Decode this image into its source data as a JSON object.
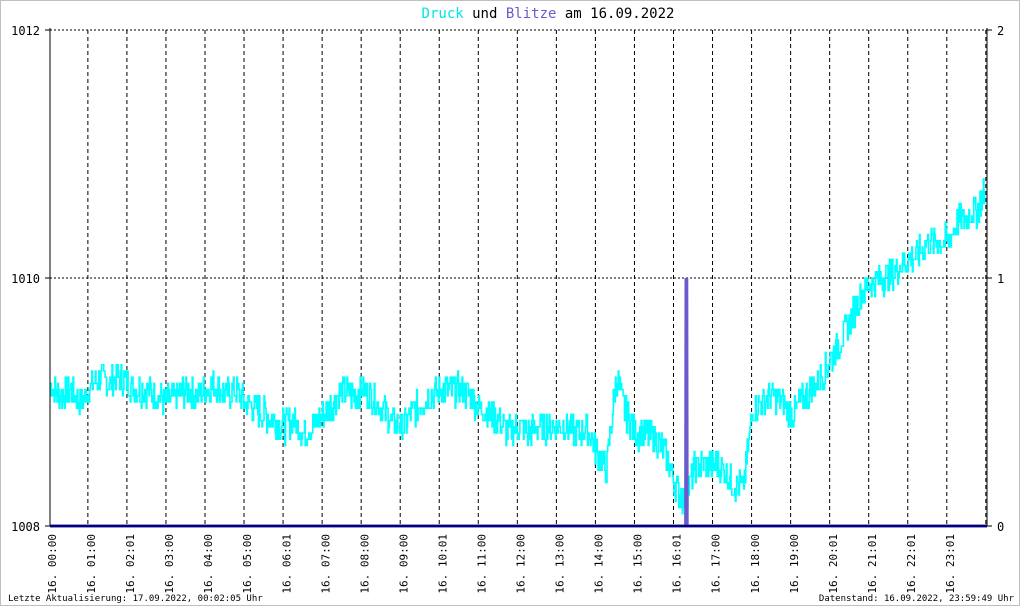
{
  "title": {
    "part1": "Druck",
    "part2": " und ",
    "part3": "Blitze",
    "part4": " am 16.09.2022"
  },
  "footer": {
    "left": "Letzte Aktualisierung: 17.09.2022, 00:02:05 Uhr",
    "right": "Datenstand: 16.09.2022, 23:59:49 Uhr"
  },
  "colors": {
    "druck": "#00ffff",
    "blitze": "#6a5acd",
    "axis": "#000080",
    "frame": "#000000"
  },
  "chart_data": {
    "type": "line",
    "title": "Druck und Blitze am 16.09.2022",
    "x_ticks": [
      "16. 00:00",
      "16. 01:00",
      "16. 02:01",
      "16. 03:00",
      "16. 04:00",
      "16. 05:00",
      "16. 06:01",
      "16. 07:00",
      "16. 08:00",
      "16. 09:00",
      "16. 10:01",
      "16. 11:00",
      "16. 12:00",
      "16. 13:00",
      "16. 14:00",
      "16. 15:00",
      "16. 16:01",
      "16. 17:00",
      "16. 18:00",
      "16. 19:00",
      "16. 20:01",
      "16. 21:01",
      "16. 22:01",
      "16. 23:01"
    ],
    "xlim": [
      0,
      24
    ],
    "y_left": {
      "ticks": [
        "1008",
        "1010",
        "1012"
      ],
      "ylim": [
        1008,
        1012
      ]
    },
    "y_right": {
      "ticks": [
        "0",
        "1",
        "2"
      ],
      "ylim": [
        0,
        2
      ]
    },
    "grid": true,
    "series": [
      {
        "name": "Druck",
        "axis": "left",
        "x": [
          0,
          0.25,
          0.5,
          0.75,
          1,
          1.25,
          1.5,
          1.75,
          2,
          2.25,
          2.5,
          2.75,
          3,
          3.25,
          3.5,
          3.75,
          4,
          4.25,
          4.5,
          4.75,
          5,
          5.25,
          5.5,
          5.75,
          6,
          6.25,
          6.5,
          6.75,
          7,
          7.25,
          7.5,
          7.75,
          8,
          8.25,
          8.5,
          8.75,
          9,
          9.25,
          9.5,
          9.75,
          10,
          10.25,
          10.5,
          10.75,
          11,
          11.25,
          11.5,
          11.75,
          12,
          12.25,
          12.5,
          12.75,
          13,
          13.25,
          13.5,
          13.75,
          14,
          14.25,
          14.5,
          14.75,
          15,
          15.25,
          15.5,
          15.75,
          16,
          16.25,
          16.5,
          16.75,
          17,
          17.25,
          17.5,
          17.75,
          18,
          18.25,
          18.5,
          18.75,
          19,
          19.25,
          19.5,
          19.75,
          20,
          20.25,
          20.5,
          20.75,
          21,
          21.25,
          21.5,
          21.75,
          22,
          22.25,
          22.5,
          22.75,
          23,
          23.25,
          23.5,
          23.75,
          23.95
        ],
        "values": [
          1009.15,
          1009.05,
          1009.1,
          1009.0,
          1009.1,
          1009.2,
          1009.15,
          1009.2,
          1009.15,
          1009.1,
          1009.1,
          1009.05,
          1009.0,
          1009.05,
          1009.1,
          1009.05,
          1009.1,
          1009.15,
          1009.05,
          1009.1,
          1009.0,
          1008.95,
          1008.9,
          1008.85,
          1008.8,
          1008.85,
          1008.75,
          1008.8,
          1008.9,
          1009.0,
          1009.1,
          1009.05,
          1009.1,
          1009.05,
          1008.95,
          1008.85,
          1008.8,
          1008.9,
          1009.0,
          1009.05,
          1009.1,
          1009.1,
          1009.1,
          1009.05,
          1008.95,
          1008.9,
          1008.85,
          1008.75,
          1008.8,
          1008.75,
          1008.8,
          1008.8,
          1008.8,
          1008.8,
          1008.75,
          1008.8,
          1008.6,
          1008.45,
          1009.2,
          1008.9,
          1008.75,
          1008.75,
          1008.7,
          1008.6,
          1008.35,
          1008.2,
          1008.45,
          1008.5,
          1008.5,
          1008.45,
          1008.35,
          1008.3,
          1008.95,
          1009.0,
          1009.05,
          1009.0,
          1008.9,
          1009.0,
          1009.1,
          1009.2,
          1009.35,
          1009.5,
          1009.65,
          1009.85,
          1009.95,
          1010.0,
          1010.0,
          1010.1,
          1010.15,
          1010.2,
          1010.3,
          1010.3,
          1010.3,
          1010.45,
          1010.5,
          1010.55,
          1010.7
        ]
      },
      {
        "name": "Blitze",
        "axis": "right",
        "x": [
          0,
          16.28,
          16.29,
          16.3,
          16.31,
          16.32,
          24
        ],
        "values": [
          0,
          0,
          1,
          0.5,
          1,
          0,
          0
        ]
      }
    ]
  }
}
